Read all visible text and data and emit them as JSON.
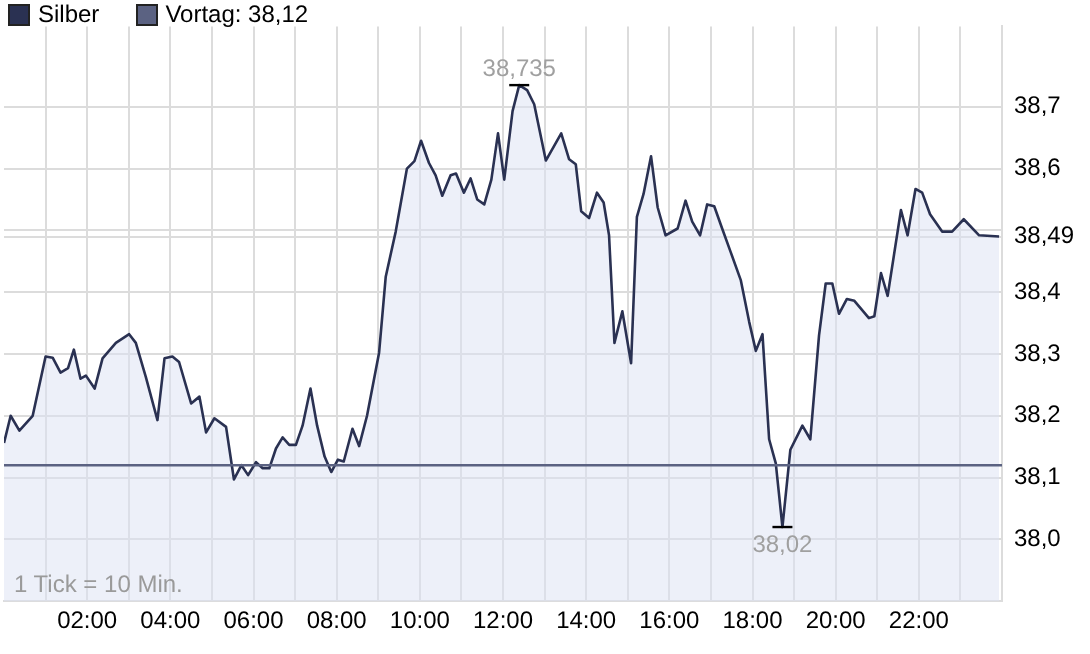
{
  "chart_data": {
    "type": "area",
    "x": [
      0,
      0.16,
      0.37,
      0.69,
      1.0,
      1.17,
      1.36,
      1.54,
      1.68,
      1.84,
      1.97,
      2.18,
      2.37,
      2.69,
      3.01,
      3.17,
      3.41,
      3.69,
      3.86,
      4.05,
      4.21,
      4.5,
      4.7,
      4.86,
      5.06,
      5.34,
      5.53,
      5.71,
      5.87,
      6.06,
      6.22,
      6.38,
      6.54,
      6.7,
      6.86,
      7.02,
      7.18,
      7.37,
      7.53,
      7.71,
      7.87,
      8.03,
      8.17,
      8.38,
      8.54,
      8.73,
      9.02,
      9.18,
      9.42,
      9.69,
      9.87,
      10.03,
      10.22,
      10.38,
      10.54,
      10.74,
      10.87,
      11.06,
      11.22,
      11.38,
      11.55,
      11.72,
      11.88,
      12.03,
      12.23,
      12.39,
      12.58,
      12.75,
      13.03,
      13.4,
      13.59,
      13.75,
      13.88,
      14.07,
      14.26,
      14.42,
      14.55,
      14.68,
      14.87,
      15.08,
      15.22,
      15.38,
      15.56,
      15.72,
      15.91,
      16.2,
      16.39,
      16.55,
      16.74,
      16.91,
      17.08,
      17.27,
      17.48,
      17.72,
      17.92,
      18.08,
      18.24,
      18.4,
      18.56,
      18.72,
      18.91,
      19.2,
      19.39,
      19.6,
      19.76,
      19.92,
      20.08,
      20.27,
      20.45,
      20.8,
      20.93,
      21.09,
      21.25,
      21.57,
      21.73,
      21.92,
      22.08,
      22.27,
      22.56,
      22.8,
      23.08,
      23.45,
      23.93
    ],
    "series": [
      {
        "name": "Silber",
        "color": "#2a3152",
        "values": [
          38.156,
          38.2,
          38.176,
          38.2,
          38.296,
          38.294,
          38.27,
          38.277,
          38.307,
          38.26,
          38.265,
          38.244,
          38.293,
          38.318,
          38.332,
          38.318,
          38.263,
          38.193,
          38.293,
          38.296,
          38.287,
          38.22,
          38.231,
          38.173,
          38.196,
          38.182,
          38.097,
          38.12,
          38.104,
          38.125,
          38.115,
          38.115,
          38.147,
          38.165,
          38.153,
          38.153,
          38.184,
          38.244,
          38.184,
          38.134,
          38.109,
          38.129,
          38.126,
          38.179,
          38.151,
          38.2,
          38.302,
          38.425,
          38.498,
          38.6,
          38.612,
          38.645,
          38.609,
          38.589,
          38.556,
          38.589,
          38.592,
          38.561,
          38.584,
          38.55,
          38.542,
          38.582,
          38.657,
          38.582,
          38.693,
          38.735,
          38.727,
          38.704,
          38.613,
          38.657,
          38.615,
          38.607,
          38.531,
          38.52,
          38.561,
          38.545,
          38.492,
          38.318,
          38.369,
          38.285,
          38.522,
          38.559,
          38.62,
          38.537,
          38.492,
          38.503,
          38.548,
          38.514,
          38.492,
          38.542,
          38.539,
          38.503,
          38.464,
          38.419,
          38.352,
          38.305,
          38.332,
          38.162,
          38.123,
          38.02,
          38.145,
          38.184,
          38.162,
          38.33,
          38.414,
          38.414,
          38.365,
          38.389,
          38.386,
          38.358,
          38.361,
          38.431,
          38.394,
          38.533,
          38.492,
          38.567,
          38.561,
          38.526,
          38.498,
          38.498,
          38.518,
          38.492,
          38.49
        ]
      }
    ],
    "xlim": [
      0,
      24
    ],
    "xticks": [
      {
        "value": 1,
        "label": null
      },
      {
        "value": 2,
        "label": "02:00"
      },
      {
        "value": 3,
        "label": null
      },
      {
        "value": 4,
        "label": "04:00"
      },
      {
        "value": 5,
        "label": null
      },
      {
        "value": 6,
        "label": "06:00"
      },
      {
        "value": 7,
        "label": null
      },
      {
        "value": 8,
        "label": "08:00"
      },
      {
        "value": 9,
        "label": null
      },
      {
        "value": 10,
        "label": "10:00"
      },
      {
        "value": 11,
        "label": null
      },
      {
        "value": 12,
        "label": "12:00"
      },
      {
        "value": 13,
        "label": null
      },
      {
        "value": 14,
        "label": "14:00"
      },
      {
        "value": 15,
        "label": null
      },
      {
        "value": 16,
        "label": "16:00"
      },
      {
        "value": 17,
        "label": null
      },
      {
        "value": 18,
        "label": "18:00"
      },
      {
        "value": 19,
        "label": null
      },
      {
        "value": 20,
        "label": "20:00"
      },
      {
        "value": 21,
        "label": null
      },
      {
        "value": 22,
        "label": "22:00"
      },
      {
        "value": 23,
        "label": null
      }
    ],
    "ylim": [
      37.9,
      38.83
    ],
    "yticks": [
      {
        "value": 38.0,
        "label": "38,0"
      },
      {
        "value": 38.1,
        "label": "38,1"
      },
      {
        "value": 38.2,
        "label": "38,2"
      },
      {
        "value": 38.3,
        "label": "38,3"
      },
      {
        "value": 38.4,
        "label": "38,4"
      },
      {
        "value": 38.49,
        "label": "38,49"
      },
      {
        "value": 38.5,
        "label": null
      },
      {
        "value": 38.6,
        "label": "38,6"
      },
      {
        "value": 38.7,
        "label": "38,7"
      }
    ],
    "ref_lines": [
      {
        "axis": "y",
        "value": 38.12,
        "label": "Vortag: 38,12",
        "color": "#5b6282"
      }
    ],
    "annotations": [
      {
        "text": "38,735",
        "x": 12.39,
        "y": 38.735
      },
      {
        "text": "38,02",
        "x": 18.72,
        "y": 38.02
      },
      "1 Tick = 10 Min."
    ],
    "grid": true,
    "legend": "top left",
    "marker": "none",
    "line_style": "solid"
  }
}
